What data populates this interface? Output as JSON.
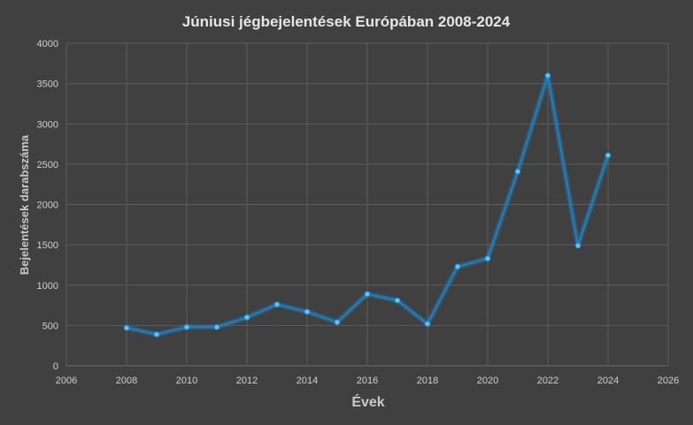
{
  "colors": {
    "background": "#404040",
    "line": "#1f7fc0",
    "marker": "#5cc7ff",
    "grid": "#5c5c5c"
  },
  "chart_data": {
    "type": "line",
    "title": "Júniusi jégbejelentések Európában 2008-2024",
    "xlabel": "Évek",
    "ylabel": "Bejelentések darabszáma",
    "xlim": [
      2006,
      2026
    ],
    "ylim": [
      0,
      4000
    ],
    "x_ticks": [
      2006,
      2008,
      2010,
      2012,
      2014,
      2016,
      2018,
      2020,
      2022,
      2024,
      2026
    ],
    "y_ticks": [
      0,
      500,
      1000,
      1500,
      2000,
      2500,
      3000,
      3500,
      4000
    ],
    "grid": true,
    "legend": "none",
    "series": [
      {
        "x": [
          2008,
          2009,
          2010,
          2011,
          2012,
          2013,
          2014,
          2015,
          2016,
          2017,
          2018,
          2019,
          2020,
          2021,
          2022,
          2023,
          2024
        ],
        "values": [
          470,
          390,
          480,
          480,
          600,
          760,
          670,
          540,
          890,
          810,
          520,
          1230,
          1330,
          2410,
          3600,
          1490,
          2610
        ]
      }
    ]
  }
}
